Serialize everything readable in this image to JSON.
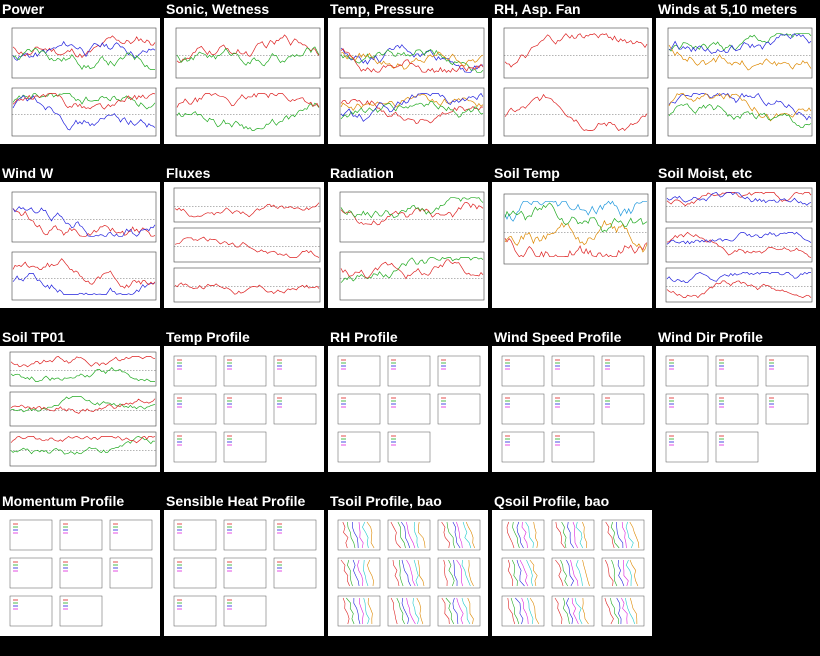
{
  "page": {
    "background": "#000000"
  },
  "tiles": [
    {
      "id": "power",
      "title": "Power",
      "kind": "timeseries2",
      "colors": [
        "#dd2222",
        "#2222dd",
        "#22aa22"
      ]
    },
    {
      "id": "sonic",
      "title": "Sonic, Wetness",
      "kind": "timeseries2",
      "colors": [
        "#dd2222",
        "#22aa22"
      ]
    },
    {
      "id": "temp",
      "title": "Temp, Pressure",
      "kind": "timeseries2",
      "colors": [
        "#2222dd",
        "#22aa22",
        "#dd8800",
        "#dd2222"
      ]
    },
    {
      "id": "rh",
      "title": "RH, Asp. Fan",
      "kind": "timeseries2",
      "colors": [
        "#dd2222"
      ]
    },
    {
      "id": "winds",
      "title": "Winds at 5,10 meters",
      "kind": "timeseries2",
      "colors": [
        "#22aa22",
        "#dd8800",
        "#2222dd"
      ]
    },
    {
      "id": "windw",
      "title": "Wind W",
      "kind": "timeseries2",
      "colors": [
        "#dd2222",
        "#2222dd"
      ]
    },
    {
      "id": "fluxes",
      "title": "Fluxes",
      "kind": "timeseries3",
      "colors": [
        "#dd2222"
      ]
    },
    {
      "id": "radiation",
      "title": "Radiation",
      "kind": "timeseries2",
      "colors": [
        "#dd2222",
        "#22aa22"
      ]
    },
    {
      "id": "soiltemp",
      "title": "Soil Temp",
      "kind": "timeseries1",
      "colors": [
        "#dd2222",
        "#2299dd",
        "#dd8800",
        "#22aa22"
      ]
    },
    {
      "id": "soilmoist",
      "title": "Soil Moist, etc",
      "kind": "timeseries3",
      "colors": [
        "#dd2222",
        "#2222dd"
      ]
    },
    {
      "id": "soiltp01",
      "title": "Soil TP01",
      "kind": "timeseries3",
      "colors": [
        "#22aa22",
        "#dd2222"
      ]
    },
    {
      "id": "tempprofile",
      "title": "Temp Profile",
      "kind": "profilegrid",
      "colors": [
        "#dd2222",
        "#22aa22",
        "#2222dd",
        "#dd22dd"
      ]
    },
    {
      "id": "rhprofile",
      "title": "RH Profile",
      "kind": "profilegrid",
      "colors": [
        "#dd2222",
        "#22aa22",
        "#2222dd",
        "#dd22dd"
      ]
    },
    {
      "id": "wsprofile",
      "title": "Wind Speed Profile",
      "kind": "profilegrid",
      "colors": [
        "#dd2222",
        "#22aa22",
        "#2222dd",
        "#dd22dd"
      ]
    },
    {
      "id": "wdprofile",
      "title": "Wind Dir Profile",
      "kind": "profilegrid",
      "colors": [
        "#dd2222",
        "#22aa22",
        "#2222dd",
        "#dd22dd"
      ]
    },
    {
      "id": "momprofile",
      "title": "Momentum Profile",
      "kind": "profilegrid",
      "colors": [
        "#dd2222",
        "#22aa22",
        "#2222dd",
        "#dd22dd"
      ]
    },
    {
      "id": "shprofile",
      "title": "Sensible Heat Profile",
      "kind": "profilegrid",
      "colors": [
        "#dd2222",
        "#22aa22",
        "#2222dd",
        "#dd22dd"
      ]
    },
    {
      "id": "tsoilprofile",
      "title": "Tsoil Profile, bao",
      "kind": "profilelines",
      "colors": [
        "#dd2222",
        "#22aa22",
        "#2222dd",
        "#dd22dd",
        "#22cccc",
        "#dd8800"
      ]
    },
    {
      "id": "qsoilprofile",
      "title": "Qsoil Profile, bao",
      "kind": "profilelines",
      "colors": [
        "#dd2222",
        "#22aa22",
        "#2222dd",
        "#dd22dd",
        "#22cccc",
        "#dd8800"
      ]
    }
  ]
}
